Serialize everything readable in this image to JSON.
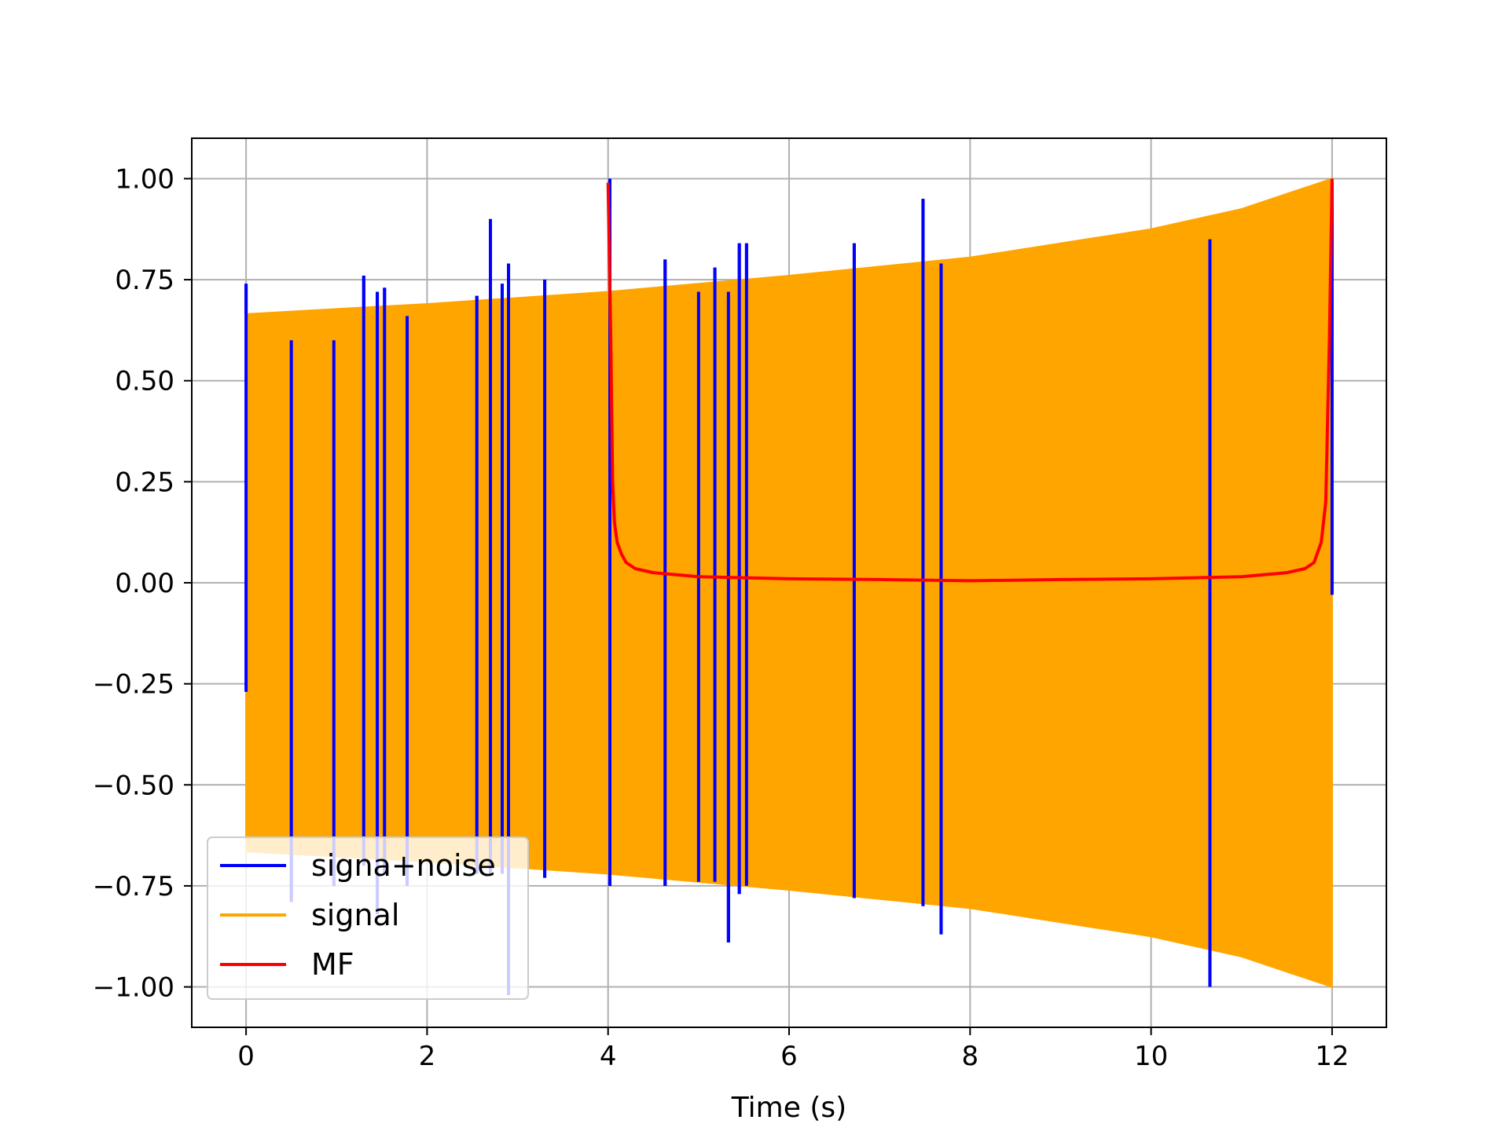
{
  "chart_data": {
    "type": "line",
    "title": "",
    "xlabel": "Time (s)",
    "ylabel": "",
    "xlim": [
      -0.6,
      12.6
    ],
    "ylim": [
      -1.1,
      1.1
    ],
    "grid": true,
    "legend_placement": "lower-left",
    "x_ticks": [
      0,
      2,
      4,
      6,
      8,
      10,
      12
    ],
    "x_tick_labels": [
      "0",
      "2",
      "4",
      "6",
      "8",
      "10",
      "12"
    ],
    "y_ticks": [
      1.0,
      0.75,
      0.5,
      0.25,
      0.0,
      -0.25,
      -0.5,
      -0.75,
      -1.0
    ],
    "y_tick_labels": [
      "1.00",
      "0.75",
      "0.50",
      "0.25",
      "0.00",
      "−0.25",
      "−0.50",
      "−0.75",
      "−1.00"
    ],
    "series": [
      {
        "name": "signa+noise",
        "color": "#0000ff",
        "spikes": [
          {
            "x": 0.0,
            "low": -0.27,
            "high": 0.74
          },
          {
            "x": 0.5,
            "low": -0.79,
            "high": 0.6
          },
          {
            "x": 0.97,
            "low": -0.75,
            "high": 0.6
          },
          {
            "x": 1.3,
            "low": -0.7,
            "high": 0.76
          },
          {
            "x": 1.45,
            "low": -0.82,
            "high": 0.72
          },
          {
            "x": 1.53,
            "low": -0.72,
            "high": 0.73
          },
          {
            "x": 1.78,
            "low": -0.75,
            "high": 0.66
          },
          {
            "x": 2.55,
            "low": -0.72,
            "high": 0.71
          },
          {
            "x": 2.7,
            "low": -0.72,
            "high": 0.9
          },
          {
            "x": 2.83,
            "low": -0.72,
            "high": 0.74
          },
          {
            "x": 2.9,
            "low": -1.02,
            "high": 0.79
          },
          {
            "x": 3.3,
            "low": -0.73,
            "high": 0.75
          },
          {
            "x": 4.02,
            "low": -0.75,
            "high": 1.0
          },
          {
            "x": 4.63,
            "low": -0.75,
            "high": 0.8
          },
          {
            "x": 5.0,
            "low": -0.74,
            "high": 0.72
          },
          {
            "x": 5.18,
            "low": -0.74,
            "high": 0.78
          },
          {
            "x": 5.33,
            "low": -0.89,
            "high": 0.72
          },
          {
            "x": 5.45,
            "low": -0.77,
            "high": 0.84
          },
          {
            "x": 5.53,
            "low": -0.75,
            "high": 0.84
          },
          {
            "x": 6.72,
            "low": -0.78,
            "high": 0.84
          },
          {
            "x": 7.48,
            "low": -0.8,
            "high": 0.95
          },
          {
            "x": 7.68,
            "low": -0.87,
            "high": 0.79
          },
          {
            "x": 10.65,
            "low": -1.0,
            "high": 0.85
          },
          {
            "x": 12.0,
            "low": -0.03,
            "high": 0.99
          }
        ]
      },
      {
        "name": "signal",
        "color": "#ffa500",
        "description_envelope": [
          {
            "x": 0.0,
            "amplitude": 0.665
          },
          {
            "x": 2.0,
            "amplitude": 0.69
          },
          {
            "x": 4.0,
            "amplitude": 0.72
          },
          {
            "x": 6.0,
            "amplitude": 0.76
          },
          {
            "x": 8.0,
            "amplitude": 0.805
          },
          {
            "x": 10.0,
            "amplitude": 0.875
          },
          {
            "x": 11.0,
            "amplitude": 0.925
          },
          {
            "x": 12.0,
            "amplitude": 1.0
          }
        ]
      },
      {
        "name": "MF",
        "color": "#ff0000",
        "x": [
          4.0,
          4.03,
          4.05,
          4.07,
          4.1,
          4.15,
          4.2,
          4.3,
          4.5,
          5.0,
          6.0,
          7.0,
          8.0,
          9.0,
          10.0,
          11.0,
          11.5,
          11.7,
          11.8,
          11.88,
          11.93,
          11.97,
          12.0
        ],
        "values": [
          0.99,
          0.6,
          0.25,
          0.15,
          0.1,
          0.07,
          0.05,
          0.035,
          0.025,
          0.015,
          0.01,
          0.008,
          0.005,
          0.008,
          0.01,
          0.015,
          0.025,
          0.035,
          0.05,
          0.1,
          0.2,
          0.6,
          1.0
        ]
      }
    ]
  }
}
